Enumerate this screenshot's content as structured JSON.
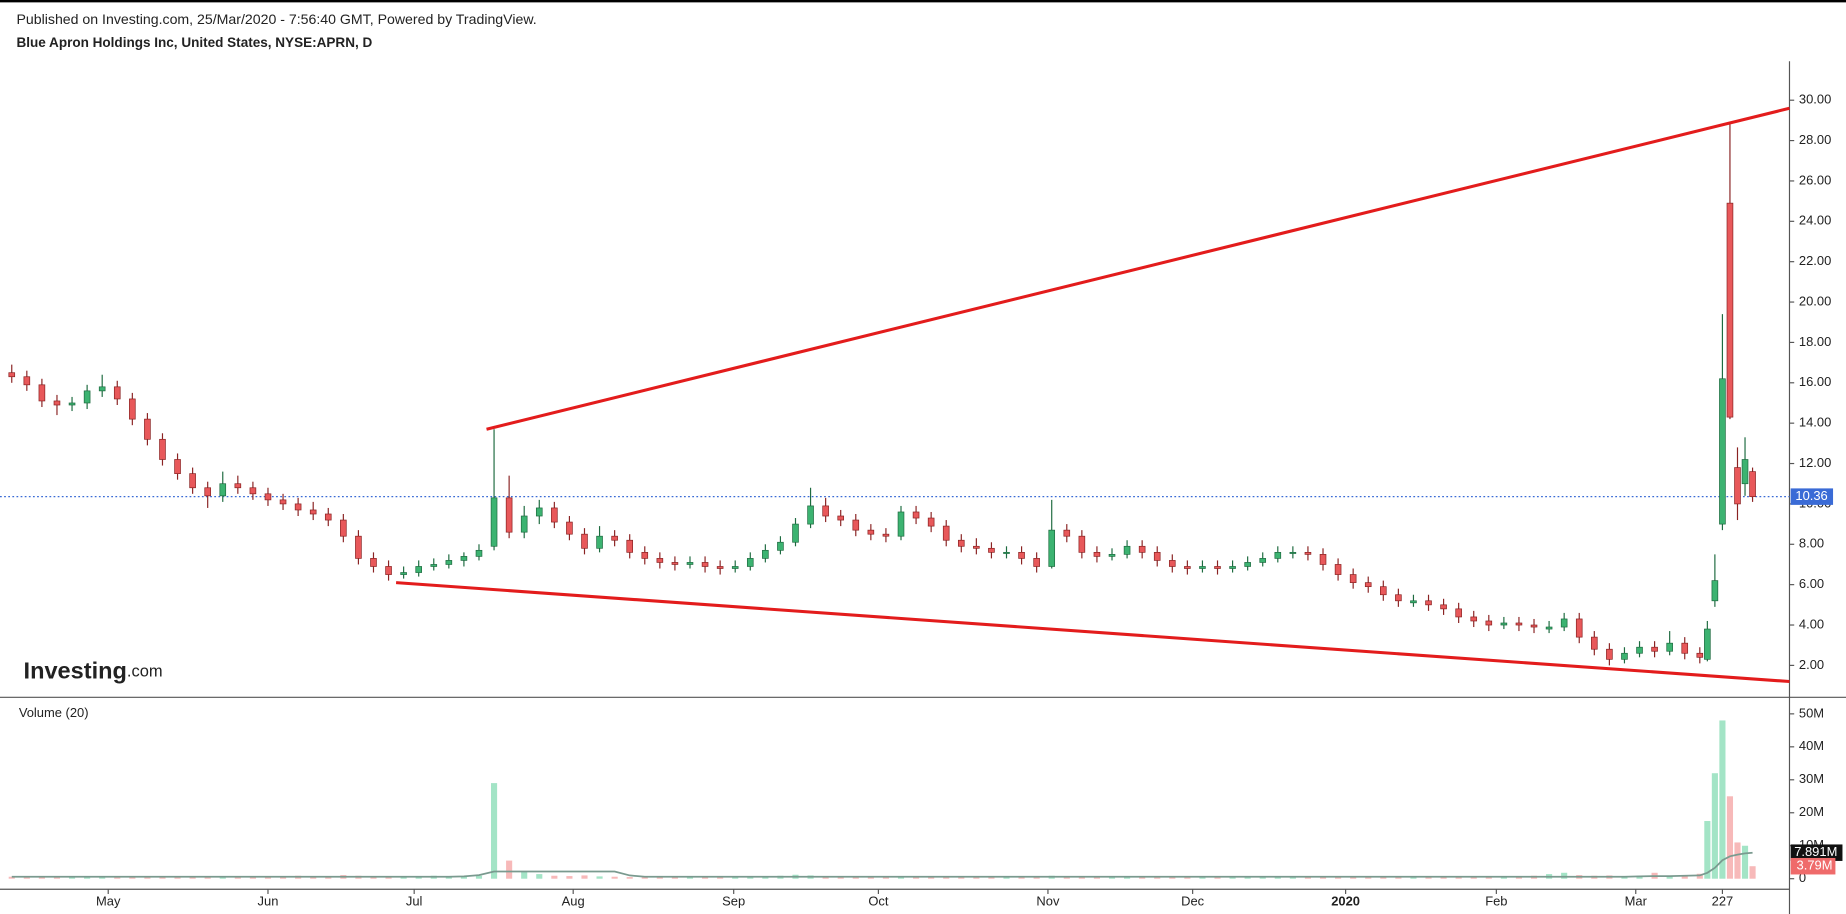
{
  "header": {
    "published": "Published on Investing.com, 25/Mar/2020 - 7:56:40 GMT, Powered by TradingView.",
    "symbol": "Blue Apron Holdings Inc, United States, NYSE:APRN, D"
  },
  "logo": {
    "brand": "Investing",
    "suffix": ".com"
  },
  "chart_data": {
    "type": "candlestick",
    "x": [
      0,
      2,
      4,
      6,
      8,
      10,
      12,
      14,
      16,
      18,
      20,
      22,
      24,
      26,
      28,
      30,
      32,
      34,
      36,
      38,
      40,
      42,
      44,
      46,
      48,
      50,
      52,
      54,
      56,
      58,
      60,
      62,
      64,
      66,
      68,
      70,
      72,
      74,
      76,
      78,
      80,
      82,
      84,
      86,
      88,
      90,
      92,
      94,
      96,
      98,
      100,
      102,
      104,
      106,
      108,
      110,
      112,
      114,
      116,
      118,
      120,
      122,
      124,
      126,
      128,
      130,
      132,
      134,
      136,
      138,
      140,
      142,
      144,
      146,
      148,
      150,
      152,
      154,
      156,
      158,
      160,
      162,
      164,
      166,
      168,
      170,
      172,
      174,
      176,
      178,
      180,
      182,
      184,
      186,
      188,
      190,
      192,
      194,
      196,
      198,
      200,
      202,
      204,
      206,
      208,
      210,
      212,
      214,
      216,
      218,
      220,
      222,
      224,
      225,
      226,
      227,
      228,
      229,
      230,
      231
    ],
    "ohlc": [
      [
        16.5,
        16.9,
        16.0,
        16.3
      ],
      [
        16.3,
        16.6,
        15.6,
        15.9
      ],
      [
        15.9,
        16.2,
        14.8,
        15.1
      ],
      [
        15.1,
        15.4,
        14.4,
        14.9
      ],
      [
        14.9,
        15.3,
        14.6,
        15.0
      ],
      [
        15.0,
        15.9,
        14.7,
        15.6
      ],
      [
        15.6,
        16.4,
        15.3,
        15.8
      ],
      [
        15.8,
        16.1,
        14.9,
        15.2
      ],
      [
        15.2,
        15.5,
        13.9,
        14.2
      ],
      [
        14.2,
        14.5,
        12.9,
        13.2
      ],
      [
        13.2,
        13.5,
        11.9,
        12.2
      ],
      [
        12.2,
        12.5,
        11.2,
        11.5
      ],
      [
        11.5,
        11.8,
        10.5,
        10.8
      ],
      [
        10.8,
        11.1,
        9.8,
        10.4
      ],
      [
        10.4,
        11.6,
        10.1,
        11.0
      ],
      [
        11.0,
        11.4,
        10.5,
        10.8
      ],
      [
        10.8,
        11.1,
        10.2,
        10.5
      ],
      [
        10.5,
        10.8,
        9.9,
        10.2
      ],
      [
        10.2,
        10.5,
        9.7,
        10.0
      ],
      [
        10.0,
        10.3,
        9.4,
        9.7
      ],
      [
        9.7,
        10.1,
        9.2,
        9.5
      ],
      [
        9.5,
        9.8,
        8.9,
        9.2
      ],
      [
        9.2,
        9.5,
        8.1,
        8.4
      ],
      [
        8.4,
        8.7,
        7.0,
        7.3
      ],
      [
        7.3,
        7.6,
        6.6,
        6.9
      ],
      [
        6.9,
        7.2,
        6.2,
        6.5
      ],
      [
        6.5,
        6.9,
        6.3,
        6.6
      ],
      [
        6.6,
        7.2,
        6.4,
        6.9
      ],
      [
        6.9,
        7.3,
        6.7,
        7.0
      ],
      [
        7.0,
        7.5,
        6.8,
        7.2
      ],
      [
        7.2,
        7.6,
        6.9,
        7.4
      ],
      [
        7.4,
        8.0,
        7.2,
        7.7
      ],
      [
        7.9,
        13.7,
        7.7,
        10.3
      ],
      [
        10.3,
        11.4,
        8.3,
        8.6
      ],
      [
        8.6,
        9.9,
        8.3,
        9.4
      ],
      [
        9.4,
        10.2,
        9.0,
        9.8
      ],
      [
        9.8,
        10.1,
        8.8,
        9.1
      ],
      [
        9.1,
        9.4,
        8.2,
        8.5
      ],
      [
        8.5,
        8.8,
        7.5,
        7.8
      ],
      [
        7.8,
        8.9,
        7.6,
        8.4
      ],
      [
        8.4,
        8.7,
        7.9,
        8.2
      ],
      [
        8.2,
        8.5,
        7.3,
        7.6
      ],
      [
        7.6,
        7.9,
        7.0,
        7.3
      ],
      [
        7.3,
        7.6,
        6.8,
        7.1
      ],
      [
        7.1,
        7.4,
        6.7,
        7.0
      ],
      [
        7.0,
        7.4,
        6.8,
        7.1
      ],
      [
        7.1,
        7.4,
        6.6,
        6.9
      ],
      [
        6.9,
        7.2,
        6.5,
        6.8
      ],
      [
        6.8,
        7.2,
        6.6,
        6.9
      ],
      [
        6.9,
        7.6,
        6.7,
        7.3
      ],
      [
        7.3,
        8.0,
        7.1,
        7.7
      ],
      [
        7.7,
        8.4,
        7.5,
        8.1
      ],
      [
        8.1,
        9.3,
        7.9,
        9.0
      ],
      [
        9.0,
        10.8,
        8.8,
        9.9
      ],
      [
        9.9,
        10.3,
        9.1,
        9.4
      ],
      [
        9.4,
        9.7,
        8.9,
        9.2
      ],
      [
        9.2,
        9.5,
        8.4,
        8.7
      ],
      [
        8.7,
        9.0,
        8.2,
        8.5
      ],
      [
        8.5,
        8.8,
        8.1,
        8.4
      ],
      [
        8.4,
        9.9,
        8.2,
        9.6
      ],
      [
        9.6,
        9.9,
        9.0,
        9.3
      ],
      [
        9.3,
        9.6,
        8.6,
        8.9
      ],
      [
        8.9,
        9.2,
        7.9,
        8.2
      ],
      [
        8.2,
        8.5,
        7.6,
        7.9
      ],
      [
        7.9,
        8.3,
        7.5,
        7.8
      ],
      [
        7.8,
        8.1,
        7.3,
        7.6
      ],
      [
        7.6,
        7.9,
        7.3,
        7.6
      ],
      [
        7.6,
        7.9,
        7.0,
        7.3
      ],
      [
        7.3,
        7.6,
        6.6,
        6.9
      ],
      [
        6.9,
        10.2,
        6.8,
        8.7
      ],
      [
        8.7,
        9.0,
        8.1,
        8.4
      ],
      [
        8.4,
        8.7,
        7.3,
        7.6
      ],
      [
        7.6,
        7.9,
        7.1,
        7.4
      ],
      [
        7.4,
        7.8,
        7.2,
        7.5
      ],
      [
        7.5,
        8.2,
        7.3,
        7.9
      ],
      [
        7.9,
        8.2,
        7.3,
        7.6
      ],
      [
        7.6,
        7.9,
        6.9,
        7.2
      ],
      [
        7.2,
        7.5,
        6.6,
        6.9
      ],
      [
        6.9,
        7.2,
        6.5,
        6.8
      ],
      [
        6.8,
        7.2,
        6.6,
        6.9
      ],
      [
        6.9,
        7.2,
        6.5,
        6.8
      ],
      [
        6.8,
        7.2,
        6.6,
        6.9
      ],
      [
        6.9,
        7.4,
        6.7,
        7.1
      ],
      [
        7.1,
        7.6,
        6.9,
        7.3
      ],
      [
        7.3,
        7.9,
        7.1,
        7.6
      ],
      [
        7.6,
        7.9,
        7.3,
        7.6
      ],
      [
        7.6,
        7.9,
        7.2,
        7.5
      ],
      [
        7.5,
        7.8,
        6.7,
        7.0
      ],
      [
        7.0,
        7.3,
        6.2,
        6.5
      ],
      [
        6.5,
        6.8,
        5.8,
        6.1
      ],
      [
        6.1,
        6.4,
        5.6,
        5.9
      ],
      [
        5.9,
        6.2,
        5.2,
        5.5
      ],
      [
        5.5,
        5.8,
        4.9,
        5.2
      ],
      [
        5.1,
        5.5,
        4.9,
        5.2
      ],
      [
        5.2,
        5.5,
        4.7,
        5.0
      ],
      [
        5.0,
        5.3,
        4.5,
        4.8
      ],
      [
        4.8,
        5.1,
        4.1,
        4.4
      ],
      [
        4.4,
        4.7,
        3.9,
        4.2
      ],
      [
        4.2,
        4.5,
        3.7,
        4.0
      ],
      [
        4.0,
        4.4,
        3.8,
        4.1
      ],
      [
        4.1,
        4.4,
        3.7,
        4.0
      ],
      [
        4.0,
        4.3,
        3.6,
        3.9
      ],
      [
        3.8,
        4.2,
        3.6,
        3.9
      ],
      [
        3.9,
        4.6,
        3.7,
        4.3
      ],
      [
        4.3,
        4.6,
        3.1,
        3.4
      ],
      [
        3.4,
        3.7,
        2.5,
        2.8
      ],
      [
        2.8,
        3.1,
        2.0,
        2.3
      ],
      [
        2.3,
        2.9,
        2.1,
        2.6
      ],
      [
        2.6,
        3.2,
        2.4,
        2.9
      ],
      [
        2.9,
        3.2,
        2.4,
        2.7
      ],
      [
        2.7,
        3.7,
        2.5,
        3.1
      ],
      [
        3.1,
        3.4,
        2.3,
        2.6
      ],
      [
        2.6,
        2.9,
        2.1,
        2.4
      ],
      [
        2.3,
        4.2,
        2.2,
        3.8
      ],
      [
        5.2,
        7.5,
        4.9,
        6.2
      ],
      [
        9.0,
        19.4,
        8.7,
        16.2
      ],
      [
        24.9,
        28.8,
        14.2,
        14.3
      ],
      [
        11.8,
        12.8,
        9.2,
        10.0
      ],
      [
        11.0,
        13.3,
        10.4,
        12.2
      ],
      [
        11.6,
        11.8,
        10.1,
        10.36
      ]
    ],
    "up_color": "#3cb371",
    "down_color": "#e8585a",
    "up_border": "#1e6b40",
    "down_border": "#8a2323",
    "xlim": [
      -1.56,
      235.9
    ],
    "xticks": [
      {
        "value": 12.8,
        "label": "May"
      },
      {
        "value": 34,
        "label": "Jun"
      },
      {
        "value": 53.4,
        "label": "Jul"
      },
      {
        "value": 74.5,
        "label": "Aug"
      },
      {
        "value": 95.8,
        "label": "Sep"
      },
      {
        "value": 115,
        "label": "Oct"
      },
      {
        "value": 137.5,
        "label": "Nov"
      },
      {
        "value": 156.7,
        "label": "Dec"
      },
      {
        "value": 177,
        "label": "2020"
      },
      {
        "value": 197,
        "label": "Feb"
      },
      {
        "value": 215.5,
        "label": "Mar"
      },
      227
    ],
    "ylim": [
      0.42,
      31.93
    ],
    "yticks": [
      {
        "value": 2,
        "label": "2.00"
      },
      {
        "value": 4,
        "label": "4.00"
      },
      {
        "value": 6,
        "label": "6.00"
      },
      {
        "value": 8,
        "label": "8.00"
      },
      {
        "value": 10,
        "label": "10.00"
      },
      {
        "value": 12,
        "label": "12.00"
      },
      {
        "value": 14,
        "label": "14.00"
      },
      {
        "value": 16,
        "label": "16.00"
      },
      {
        "value": 18,
        "label": "18.00"
      },
      {
        "value": 20,
        "label": "20.00"
      },
      {
        "value": 22,
        "label": "22.00"
      },
      {
        "value": 24,
        "label": "24.00"
      },
      {
        "value": 26,
        "label": "26.00"
      },
      {
        "value": 28,
        "label": "28.00"
      },
      {
        "value": 30,
        "label": "30.00"
      }
    ],
    "last_price_color": "#3a6bd6",
    "trendlines": [
      {
        "x": [
          63,
          235.9
        ],
        "y": [
          13.7,
          29.6
        ]
      },
      {
        "x": [
          51,
          235.9
        ],
        "y": [
          6.1,
          1.2
        ]
      }
    ],
    "trendline_color": "#e31c1c",
    "volume_panel": {
      "title": "Volume (20)",
      "values": [
        0.6,
        0.5,
        0.7,
        0.5,
        0.6,
        0.8,
        0.6,
        0.5,
        0.6,
        0.7,
        0.6,
        0.5,
        0.7,
        0.6,
        0.8,
        0.6,
        0.5,
        0.7,
        0.6,
        0.9,
        0.7,
        0.8,
        1.1,
        0.9,
        0.7,
        0.8,
        0.6,
        0.7,
        0.9,
        0.8,
        0.7,
        0.9,
        29,
        5.5,
        2.2,
        1.4,
        0.9,
        0.8,
        1.0,
        0.7,
        0.6,
        0.5,
        0.6,
        0.5,
        0.6,
        0.5,
        0.5,
        0.6,
        0.5,
        0.5,
        0.7,
        0.9,
        1.2,
        1.0,
        0.7,
        0.6,
        0.5,
        0.6,
        0.5,
        0.6,
        0.5,
        0.6,
        0.5,
        0.5,
        0.6,
        0.5,
        0.5,
        0.6,
        0.5,
        0.9,
        0.6,
        0.5,
        0.5,
        0.6,
        0.5,
        0.5,
        0.6,
        0.5,
        0.5,
        0.6,
        0.5,
        0.6,
        0.5,
        0.5,
        0.6,
        0.5,
        0.6,
        0.7,
        0.6,
        0.5,
        0.6,
        0.5,
        0.6,
        0.7,
        0.6,
        0.5,
        0.6,
        0.7,
        0.6,
        0.8,
        0.7,
        0.9,
        1.4,
        1.8,
        1.1,
        0.9,
        1.0,
        0.8,
        0.9,
        1.8,
        0.8,
        1.0,
        1.5,
        17.5,
        32,
        48,
        25,
        11,
        10,
        3.79
      ],
      "ma": [
        0.6,
        0.6,
        0.6,
        0.6,
        0.6,
        0.6,
        0.6,
        0.6,
        0.6,
        0.6,
        0.6,
        0.6,
        0.6,
        0.6,
        0.6,
        0.6,
        0.6,
        0.6,
        0.6,
        0.6,
        0.6,
        0.6,
        0.6,
        0.6,
        0.6,
        0.6,
        0.6,
        0.6,
        0.6,
        0.6,
        0.7,
        1.1,
        2.2,
        2.2,
        2.2,
        2.2,
        2.2,
        2.2,
        2.2,
        2.2,
        2.2,
        1.0,
        0.6,
        0.6,
        0.6,
        0.6,
        0.6,
        0.6,
        0.6,
        0.6,
        0.6,
        0.6,
        0.6,
        0.6,
        0.6,
        0.6,
        0.6,
        0.6,
        0.6,
        0.6,
        0.6,
        0.6,
        0.6,
        0.6,
        0.6,
        0.6,
        0.6,
        0.6,
        0.6,
        0.6,
        0.6,
        0.6,
        0.6,
        0.6,
        0.6,
        0.6,
        0.6,
        0.6,
        0.6,
        0.6,
        0.6,
        0.6,
        0.6,
        0.6,
        0.6,
        0.6,
        0.6,
        0.6,
        0.6,
        0.6,
        0.6,
        0.6,
        0.6,
        0.6,
        0.6,
        0.6,
        0.6,
        0.6,
        0.6,
        0.6,
        0.6,
        0.6,
        0.6,
        0.6,
        0.6,
        0.6,
        0.6,
        0.6,
        0.7,
        0.8,
        0.8,
        0.9,
        1.0,
        1.8,
        3.3,
        5.6,
        6.8,
        7.3,
        7.7,
        7.891
      ],
      "last_value_label": "3.79M",
      "last_ma_label": "7.891M",
      "up_color": "#a3e4c6",
      "down_color": "#f7b9b9",
      "ma_color": "#7a9a8f",
      "ylim": [
        -3.2,
        53.6
      ],
      "yticks": [
        0,
        {
          "value": 10,
          "label": "10M"
        },
        {
          "value": 20,
          "label": "20M"
        },
        {
          "value": 30,
          "label": "30M"
        },
        {
          "value": 40,
          "label": "40M"
        },
        {
          "value": 50,
          "label": "50M"
        }
      ]
    }
  }
}
